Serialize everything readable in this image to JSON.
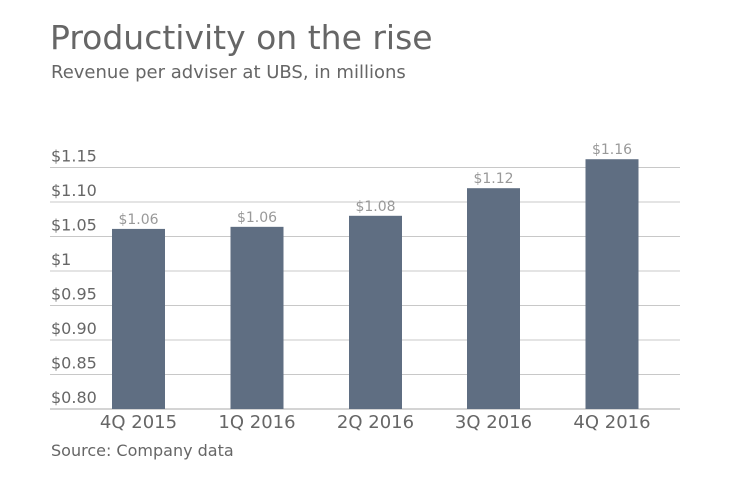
{
  "title": "Productivity on the rise",
  "subtitle": "Revenue per adviser at UBS, in millions",
  "source": "Source: Company data",
  "chart_data": {
    "type": "bar",
    "title": "Productivity on the rise",
    "subtitle": "Revenue per adviser at UBS, in millions",
    "xlabel": "",
    "ylabel": "",
    "categories": [
      "4Q 2015",
      "1Q 2016",
      "2Q 2016",
      "3Q 2016",
      "4Q 2016"
    ],
    "values": [
      1.061,
      1.064,
      1.08,
      1.12,
      1.162
    ],
    "data_labels": [
      "$1.06",
      "$1.06",
      "$1.08",
      "$1.12",
      "$1.16"
    ],
    "ylim": [
      0.8,
      1.15
    ],
    "yticks": [
      0.8,
      0.85,
      0.9,
      0.95,
      1.0,
      1.05,
      1.1,
      1.15
    ],
    "ytick_labels": [
      "$0.80",
      "$0.85",
      "$0.90",
      "$0.95",
      "$1",
      "$1.05",
      "$1.10",
      "$1.15"
    ],
    "grid": true,
    "legend": "none",
    "colors": {
      "bar": "#5f6e82",
      "grid": "#c8c8c8",
      "data_label": "#999999",
      "text": "#666666"
    }
  }
}
